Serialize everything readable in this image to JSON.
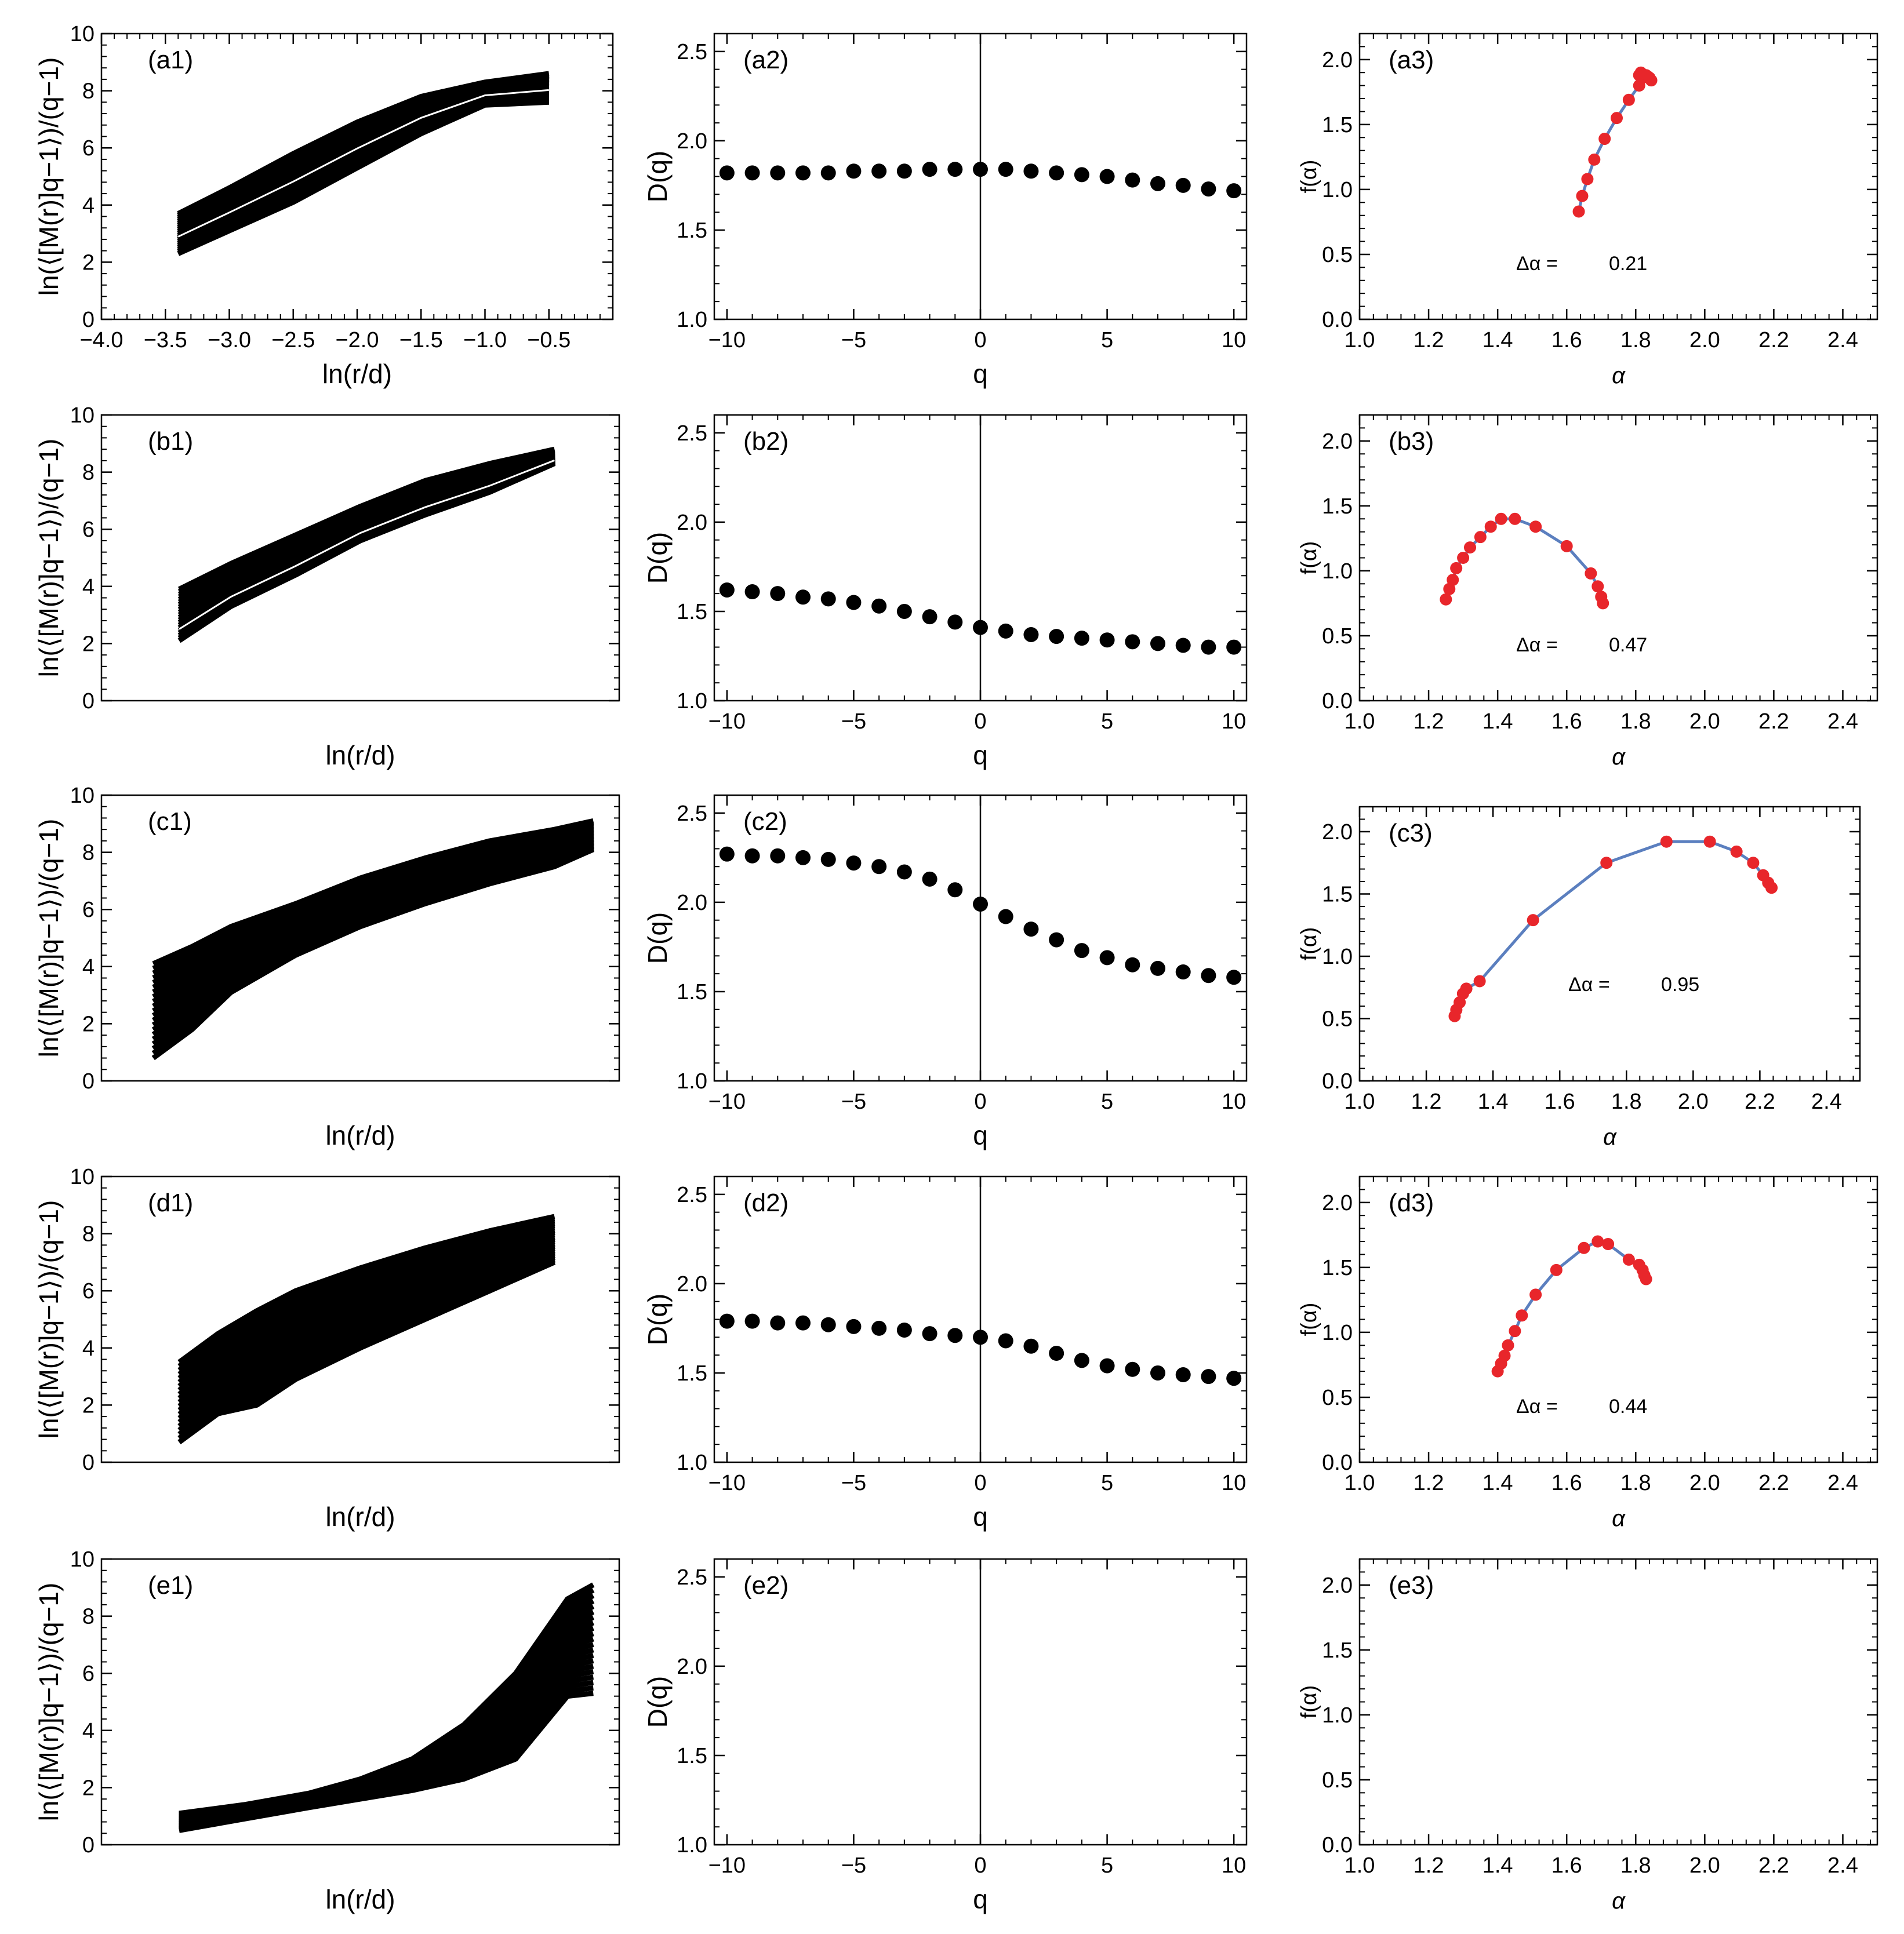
{
  "figure": {
    "colors": {
      "axis": "#000000",
      "curve": "#000000",
      "dot": "#000000",
      "spectrum_line": "#5b7fbf",
      "spectrum_point": "#e8262b"
    },
    "delta_symbol": "Δα ="
  },
  "chart_data": [
    {
      "id": "a1",
      "type": "line",
      "label": "(a1)",
      "xlabel": "ln(r/d)",
      "ylabel": "ln(⟨[M(r)]q−1⟩)/(q−1)",
      "xlim": [
        -4.0,
        0.0
      ],
      "ylim": [
        0,
        10
      ],
      "xticks": [
        -4.0,
        -3.5,
        -3.0,
        -2.5,
        -2.0,
        -1.5,
        -1.0,
        -0.5
      ],
      "xtick_labels": [
        "−4.0",
        "−3.5",
        "−3.0",
        "−2.5",
        "−2.0",
        "−1.5",
        "−1.0",
        "−0.5"
      ],
      "yticks": [
        0,
        2,
        4,
        6,
        8,
        10
      ],
      "ytick_labels": [
        "0",
        "2",
        "4",
        "6",
        "8",
        "10"
      ],
      "x": [
        -3.4,
        -3.0,
        -2.5,
        -2.0,
        -1.5,
        -1.0,
        -0.5
      ],
      "bottom": [
        2.3,
        3.1,
        4.1,
        5.3,
        6.5,
        7.5,
        7.6
      ],
      "top": [
        3.7,
        4.6,
        5.8,
        6.9,
        7.8,
        8.3,
        8.6
      ],
      "count": 21,
      "gap_index": 8
    },
    {
      "id": "b1",
      "type": "line",
      "label": "(b1)",
      "xlabel": "ln(r/d)",
      "ylabel": "ln(⟨[M(r)]q−1⟩)/(q−1)",
      "xlim": [
        -4.0,
        0.0
      ],
      "ylim": [
        0,
        10
      ],
      "xticks": [],
      "xtick_labels": [],
      "yticks": [
        0,
        2,
        4,
        6,
        8,
        10
      ],
      "ytick_labels": [
        "0",
        "2",
        "4",
        "6",
        "8",
        "10"
      ],
      "x": [
        -3.4,
        -3.0,
        -2.5,
        -2.0,
        -1.5,
        -1.0,
        -0.5
      ],
      "bottom": [
        2.1,
        3.3,
        4.4,
        5.6,
        6.5,
        7.3,
        8.3
      ],
      "top": [
        3.9,
        4.8,
        5.8,
        6.8,
        7.7,
        8.3,
        8.8
      ],
      "count": 21,
      "gap_index": 4
    },
    {
      "id": "c1",
      "type": "line",
      "label": "(c1)",
      "xlabel": "ln(r/d)",
      "ylabel": "ln(⟨[M(r)]q−1⟩)/(q−1)",
      "xlim": [
        -4.0,
        0.0
      ],
      "ylim": [
        0,
        10
      ],
      "xticks": [],
      "xtick_labels": [],
      "yticks": [
        0,
        2,
        4,
        6,
        8,
        10
      ],
      "ytick_labels": [
        "0",
        "2",
        "4",
        "6",
        "8",
        "10"
      ],
      "x": [
        -3.6,
        -3.3,
        -3.0,
        -2.5,
        -2.0,
        -1.5,
        -1.0,
        -0.5,
        -0.2
      ],
      "bottom": [
        0.8,
        1.8,
        3.1,
        4.4,
        5.4,
        6.2,
        6.9,
        7.5,
        8.1
      ],
      "top": [
        4.1,
        4.7,
        5.4,
        6.2,
        7.1,
        7.8,
        8.4,
        8.8,
        9.1
      ],
      "count": 21,
      "gap_index": -1
    },
    {
      "id": "d1",
      "type": "line",
      "label": "(d1)",
      "xlabel": "ln(r/d)",
      "ylabel": "ln(⟨[M(r)]q−1⟩)/(q−1)",
      "xlim": [
        -4.0,
        0.0
      ],
      "ylim": [
        0,
        10
      ],
      "xticks": [],
      "xtick_labels": [],
      "yticks": [
        0,
        2,
        4,
        6,
        8,
        10
      ],
      "ytick_labels": [
        "0",
        "2",
        "4",
        "6",
        "8",
        "10"
      ],
      "x": [
        -3.4,
        -3.1,
        -2.8,
        -2.5,
        -2.0,
        -1.5,
        -1.0,
        -0.5
      ],
      "bottom": [
        0.7,
        1.7,
        2.0,
        2.9,
        4.0,
        5.0,
        6.0,
        7.0
      ],
      "top": [
        3.5,
        4.5,
        5.3,
        6.0,
        6.8,
        7.5,
        8.1,
        8.6
      ],
      "count": 21,
      "gap_index": -1
    },
    {
      "id": "e1",
      "type": "line",
      "label": "(e1)",
      "xlabel": "ln(r/d)",
      "ylabel": "ln(⟨[M(r)]q−1⟩)/(q−1)",
      "xlim": [
        -4.0,
        0.0
      ],
      "ylim": [
        0,
        10
      ],
      "xticks": [],
      "xtick_labels": [],
      "yticks": [
        0,
        2,
        4,
        6,
        8,
        10
      ],
      "ytick_labels": [
        "0",
        "2",
        "4",
        "6",
        "8",
        "10"
      ],
      "x": [
        -3.4,
        -2.9,
        -2.4,
        -2.0,
        -1.6,
        -1.2,
        -0.8,
        -0.4,
        -0.2
      ],
      "bottom": [
        0.5,
        0.9,
        1.3,
        1.6,
        1.9,
        2.3,
        3.0,
        5.2,
        5.3
      ],
      "top": [
        1.1,
        1.4,
        1.8,
        2.3,
        3.0,
        4.2,
        6.0,
        8.6,
        9.1
      ],
      "count": 21,
      "gap_index": -1
    },
    {
      "id": "a2",
      "type": "scatter",
      "label": "(a2)",
      "xlabel": "q",
      "ylabel": "D(q)",
      "xlim": [
        -10.5,
        10.5
      ],
      "ylim": [
        1.0,
        2.6
      ],
      "xticks": [
        -10,
        -5,
        0,
        5,
        10
      ],
      "xtick_labels": [
        "−10",
        "−5",
        "0",
        "5",
        "10"
      ],
      "yticks": [
        1.0,
        1.5,
        2.0,
        2.5
      ],
      "ytick_labels": [
        "1.0",
        "1.5",
        "2.0",
        "2.5"
      ],
      "x": [
        -10,
        -9,
        -8,
        -7,
        -6,
        -5,
        -4,
        -3,
        -2,
        -1,
        0,
        1,
        2,
        3,
        4,
        5,
        6,
        7,
        8,
        9,
        10
      ],
      "y": [
        1.82,
        1.82,
        1.82,
        1.82,
        1.82,
        1.83,
        1.83,
        1.83,
        1.84,
        1.84,
        1.84,
        1.84,
        1.83,
        1.82,
        1.81,
        1.8,
        1.78,
        1.76,
        1.75,
        1.73,
        1.72
      ]
    },
    {
      "id": "b2",
      "type": "scatter",
      "label": "(b2)",
      "xlabel": "q",
      "ylabel": "D(q)",
      "xlim": [
        -10.5,
        10.5
      ],
      "ylim": [
        1.0,
        2.6
      ],
      "xticks": [
        -10,
        -5,
        0,
        5,
        10
      ],
      "xtick_labels": [
        "−10",
        "−5",
        "0",
        "5",
        "10"
      ],
      "yticks": [
        1.0,
        1.5,
        2.0,
        2.5
      ],
      "ytick_labels": [
        "1.0",
        "1.5",
        "2.0",
        "2.5"
      ],
      "x": [
        -10,
        -9,
        -8,
        -7,
        -6,
        -5,
        -4,
        -3,
        -2,
        -1,
        0,
        1,
        2,
        3,
        4,
        5,
        6,
        7,
        8,
        9,
        10
      ],
      "y": [
        1.62,
        1.61,
        1.6,
        1.58,
        1.57,
        1.55,
        1.53,
        1.5,
        1.47,
        1.44,
        1.41,
        1.39,
        1.37,
        1.36,
        1.35,
        1.34,
        1.33,
        1.32,
        1.31,
        1.3,
        1.3
      ]
    },
    {
      "id": "c2",
      "type": "scatter",
      "label": "(c2)",
      "xlabel": "q",
      "ylabel": "D(q)",
      "xlim": [
        -10.5,
        10.5
      ],
      "ylim": [
        1.0,
        2.6
      ],
      "xticks": [
        -10,
        -5,
        0,
        5,
        10
      ],
      "xtick_labels": [
        "−10",
        "−5",
        "0",
        "5",
        "10"
      ],
      "yticks": [
        1.0,
        1.5,
        2.0,
        2.5
      ],
      "ytick_labels": [
        "1.0",
        "1.5",
        "2.0",
        "2.5"
      ],
      "x": [
        -10,
        -9,
        -8,
        -7,
        -6,
        -5,
        -4,
        -3,
        -2,
        -1,
        0,
        1,
        2,
        3,
        4,
        5,
        6,
        7,
        8,
        9,
        10
      ],
      "y": [
        2.27,
        2.26,
        2.26,
        2.25,
        2.24,
        2.22,
        2.2,
        2.17,
        2.13,
        2.07,
        1.99,
        1.92,
        1.85,
        1.79,
        1.73,
        1.69,
        1.65,
        1.63,
        1.61,
        1.59,
        1.58
      ]
    },
    {
      "id": "d2",
      "type": "scatter",
      "label": "(d2)",
      "xlabel": "q",
      "ylabel": "D(q)",
      "xlim": [
        -10.5,
        10.5
      ],
      "ylim": [
        1.0,
        2.6
      ],
      "xticks": [
        -10,
        -5,
        0,
        5,
        10
      ],
      "xtick_labels": [
        "−10",
        "−5",
        "0",
        "5",
        "10"
      ],
      "yticks": [
        1.0,
        1.5,
        2.0,
        2.5
      ],
      "ytick_labels": [
        "1.0",
        "1.5",
        "2.0",
        "2.5"
      ],
      "x": [
        -10,
        -9,
        -8,
        -7,
        -6,
        -5,
        -4,
        -3,
        -2,
        -1,
        0,
        1,
        2,
        3,
        4,
        5,
        6,
        7,
        8,
        9,
        10
      ],
      "y": [
        1.79,
        1.79,
        1.78,
        1.78,
        1.77,
        1.76,
        1.75,
        1.74,
        1.72,
        1.71,
        1.7,
        1.68,
        1.65,
        1.61,
        1.57,
        1.54,
        1.52,
        1.5,
        1.49,
        1.48,
        1.47
      ]
    },
    {
      "id": "e2",
      "type": "scatter",
      "label": "(e2)",
      "xlabel": "q",
      "ylabel": "D(q)",
      "xlim": [
        -10.5,
        10.5
      ],
      "ylim": [
        1.0,
        2.6
      ],
      "xticks": [
        -10,
        -5,
        0,
        5,
        10
      ],
      "xtick_labels": [
        "−10",
        "−5",
        "0",
        "5",
        "10"
      ],
      "yticks": [
        1.0,
        1.5,
        2.0,
        2.5
      ],
      "ytick_labels": [
        "1.0",
        "1.5",
        "2.0",
        "2.5"
      ],
      "x": [],
      "y": []
    },
    {
      "id": "a3",
      "type": "line",
      "label": "(a3)",
      "xlabel": "α",
      "ylabel": "f(α)",
      "xlim": [
        1.0,
        2.5
      ],
      "ylim": [
        0.0,
        2.2
      ],
      "xticks": [
        1.0,
        1.2,
        1.4,
        1.6,
        1.8,
        2.0,
        2.2,
        2.4
      ],
      "xtick_labels": [
        "1.0",
        "1.2",
        "1.4",
        "1.6",
        "1.8",
        "2.0",
        "2.2",
        "2.4"
      ],
      "yticks": [
        0.0,
        0.5,
        1.0,
        1.5,
        2.0
      ],
      "ytick_labels": [
        "0.0",
        "0.5",
        "1.0",
        "1.5",
        "2.0"
      ],
      "annotation": "0.21",
      "x": [
        1.635,
        1.645,
        1.66,
        1.68,
        1.71,
        1.745,
        1.78,
        1.81,
        1.82,
        1.83,
        1.84,
        1.845,
        1.835,
        1.815,
        1.81
      ],
      "y": [
        0.83,
        0.95,
        1.08,
        1.23,
        1.39,
        1.55,
        1.69,
        1.8,
        1.86,
        1.88,
        1.86,
        1.84,
        1.87,
        1.9,
        1.88
      ]
    },
    {
      "id": "b3",
      "type": "line",
      "label": "(b3)",
      "xlabel": "α",
      "ylabel": "f(α)",
      "xlim": [
        1.0,
        2.5
      ],
      "ylim": [
        0.0,
        2.2
      ],
      "xticks": [
        1.0,
        1.2,
        1.4,
        1.6,
        1.8,
        2.0,
        2.2,
        2.4
      ],
      "xtick_labels": [
        "1.0",
        "1.2",
        "1.4",
        "1.6",
        "1.8",
        "2.0",
        "2.2",
        "2.4"
      ],
      "yticks": [
        0.0,
        0.5,
        1.0,
        1.5,
        2.0
      ],
      "ytick_labels": [
        "0.0",
        "0.5",
        "1.0",
        "1.5",
        "2.0"
      ],
      "annotation": "0.47",
      "x": [
        1.25,
        1.26,
        1.27,
        1.28,
        1.3,
        1.32,
        1.35,
        1.38,
        1.41,
        1.45,
        1.51,
        1.6,
        1.67,
        1.69,
        1.7,
        1.705
      ],
      "y": [
        0.78,
        0.86,
        0.93,
        1.02,
        1.1,
        1.18,
        1.26,
        1.34,
        1.4,
        1.4,
        1.34,
        1.19,
        0.98,
        0.88,
        0.8,
        0.75
      ]
    },
    {
      "id": "c3",
      "type": "line",
      "label": "(c3)",
      "xlabel": "α",
      "ylabel": "f(α)",
      "xlim": [
        1.0,
        2.5
      ],
      "ylim": [
        0.0,
        2.2
      ],
      "xticks": [
        1.0,
        1.2,
        1.4,
        1.6,
        1.8,
        2.0,
        2.2,
        2.4
      ],
      "xtick_labels": [
        "1.0",
        "1.2",
        "1.4",
        "1.6",
        "1.8",
        "2.0",
        "2.2",
        "2.4"
      ],
      "yticks": [
        0.0,
        0.5,
        1.0,
        1.5,
        2.0
      ],
      "ytick_labels": [
        "0.0",
        "0.5",
        "1.0",
        "1.5",
        "2.0"
      ],
      "annotation": "0.95",
      "x": [
        1.285,
        1.29,
        1.3,
        1.31,
        1.32,
        1.36,
        1.52,
        1.74,
        1.92,
        2.05,
        2.13,
        2.18,
        2.21,
        2.225,
        2.235
      ],
      "y": [
        0.52,
        0.57,
        0.63,
        0.7,
        0.74,
        0.8,
        1.29,
        1.75,
        1.92,
        1.92,
        1.84,
        1.75,
        1.65,
        1.59,
        1.55
      ]
    },
    {
      "id": "d3",
      "type": "line",
      "label": "(d3)",
      "xlabel": "α",
      "ylabel": "f(α)",
      "xlim": [
        1.0,
        2.5
      ],
      "ylim": [
        0.0,
        2.2
      ],
      "xticks": [
        1.0,
        1.2,
        1.4,
        1.6,
        1.8,
        2.0,
        2.2,
        2.4
      ],
      "xtick_labels": [
        "1.0",
        "1.2",
        "1.4",
        "1.6",
        "1.8",
        "2.0",
        "2.2",
        "2.4"
      ],
      "yticks": [
        0.0,
        0.5,
        1.0,
        1.5,
        2.0
      ],
      "ytick_labels": [
        "0.0",
        "0.5",
        "1.0",
        "1.5",
        "2.0"
      ],
      "annotation": "0.44",
      "x": [
        1.4,
        1.41,
        1.42,
        1.43,
        1.45,
        1.47,
        1.51,
        1.57,
        1.65,
        1.69,
        1.72,
        1.78,
        1.81,
        1.82,
        1.825,
        1.83
      ],
      "y": [
        0.7,
        0.76,
        0.82,
        0.9,
        1.01,
        1.13,
        1.29,
        1.48,
        1.65,
        1.7,
        1.68,
        1.56,
        1.52,
        1.48,
        1.44,
        1.41
      ]
    },
    {
      "id": "e3",
      "type": "line",
      "label": "(e3)",
      "xlabel": "α",
      "ylabel": "f(α)",
      "xlim": [
        1.0,
        2.5
      ],
      "ylim": [
        0.0,
        2.2
      ],
      "xticks": [
        1.0,
        1.2,
        1.4,
        1.6,
        1.8,
        2.0,
        2.2,
        2.4
      ],
      "xtick_labels": [
        "1.0",
        "1.2",
        "1.4",
        "1.6",
        "1.8",
        "2.0",
        "2.2",
        "2.4"
      ],
      "yticks": [
        0.0,
        0.5,
        1.0,
        1.5,
        2.0
      ],
      "ytick_labels": [
        "0.0",
        "0.5",
        "1.0",
        "1.5",
        "2.0"
      ],
      "annotation": "",
      "x": [],
      "y": []
    }
  ]
}
